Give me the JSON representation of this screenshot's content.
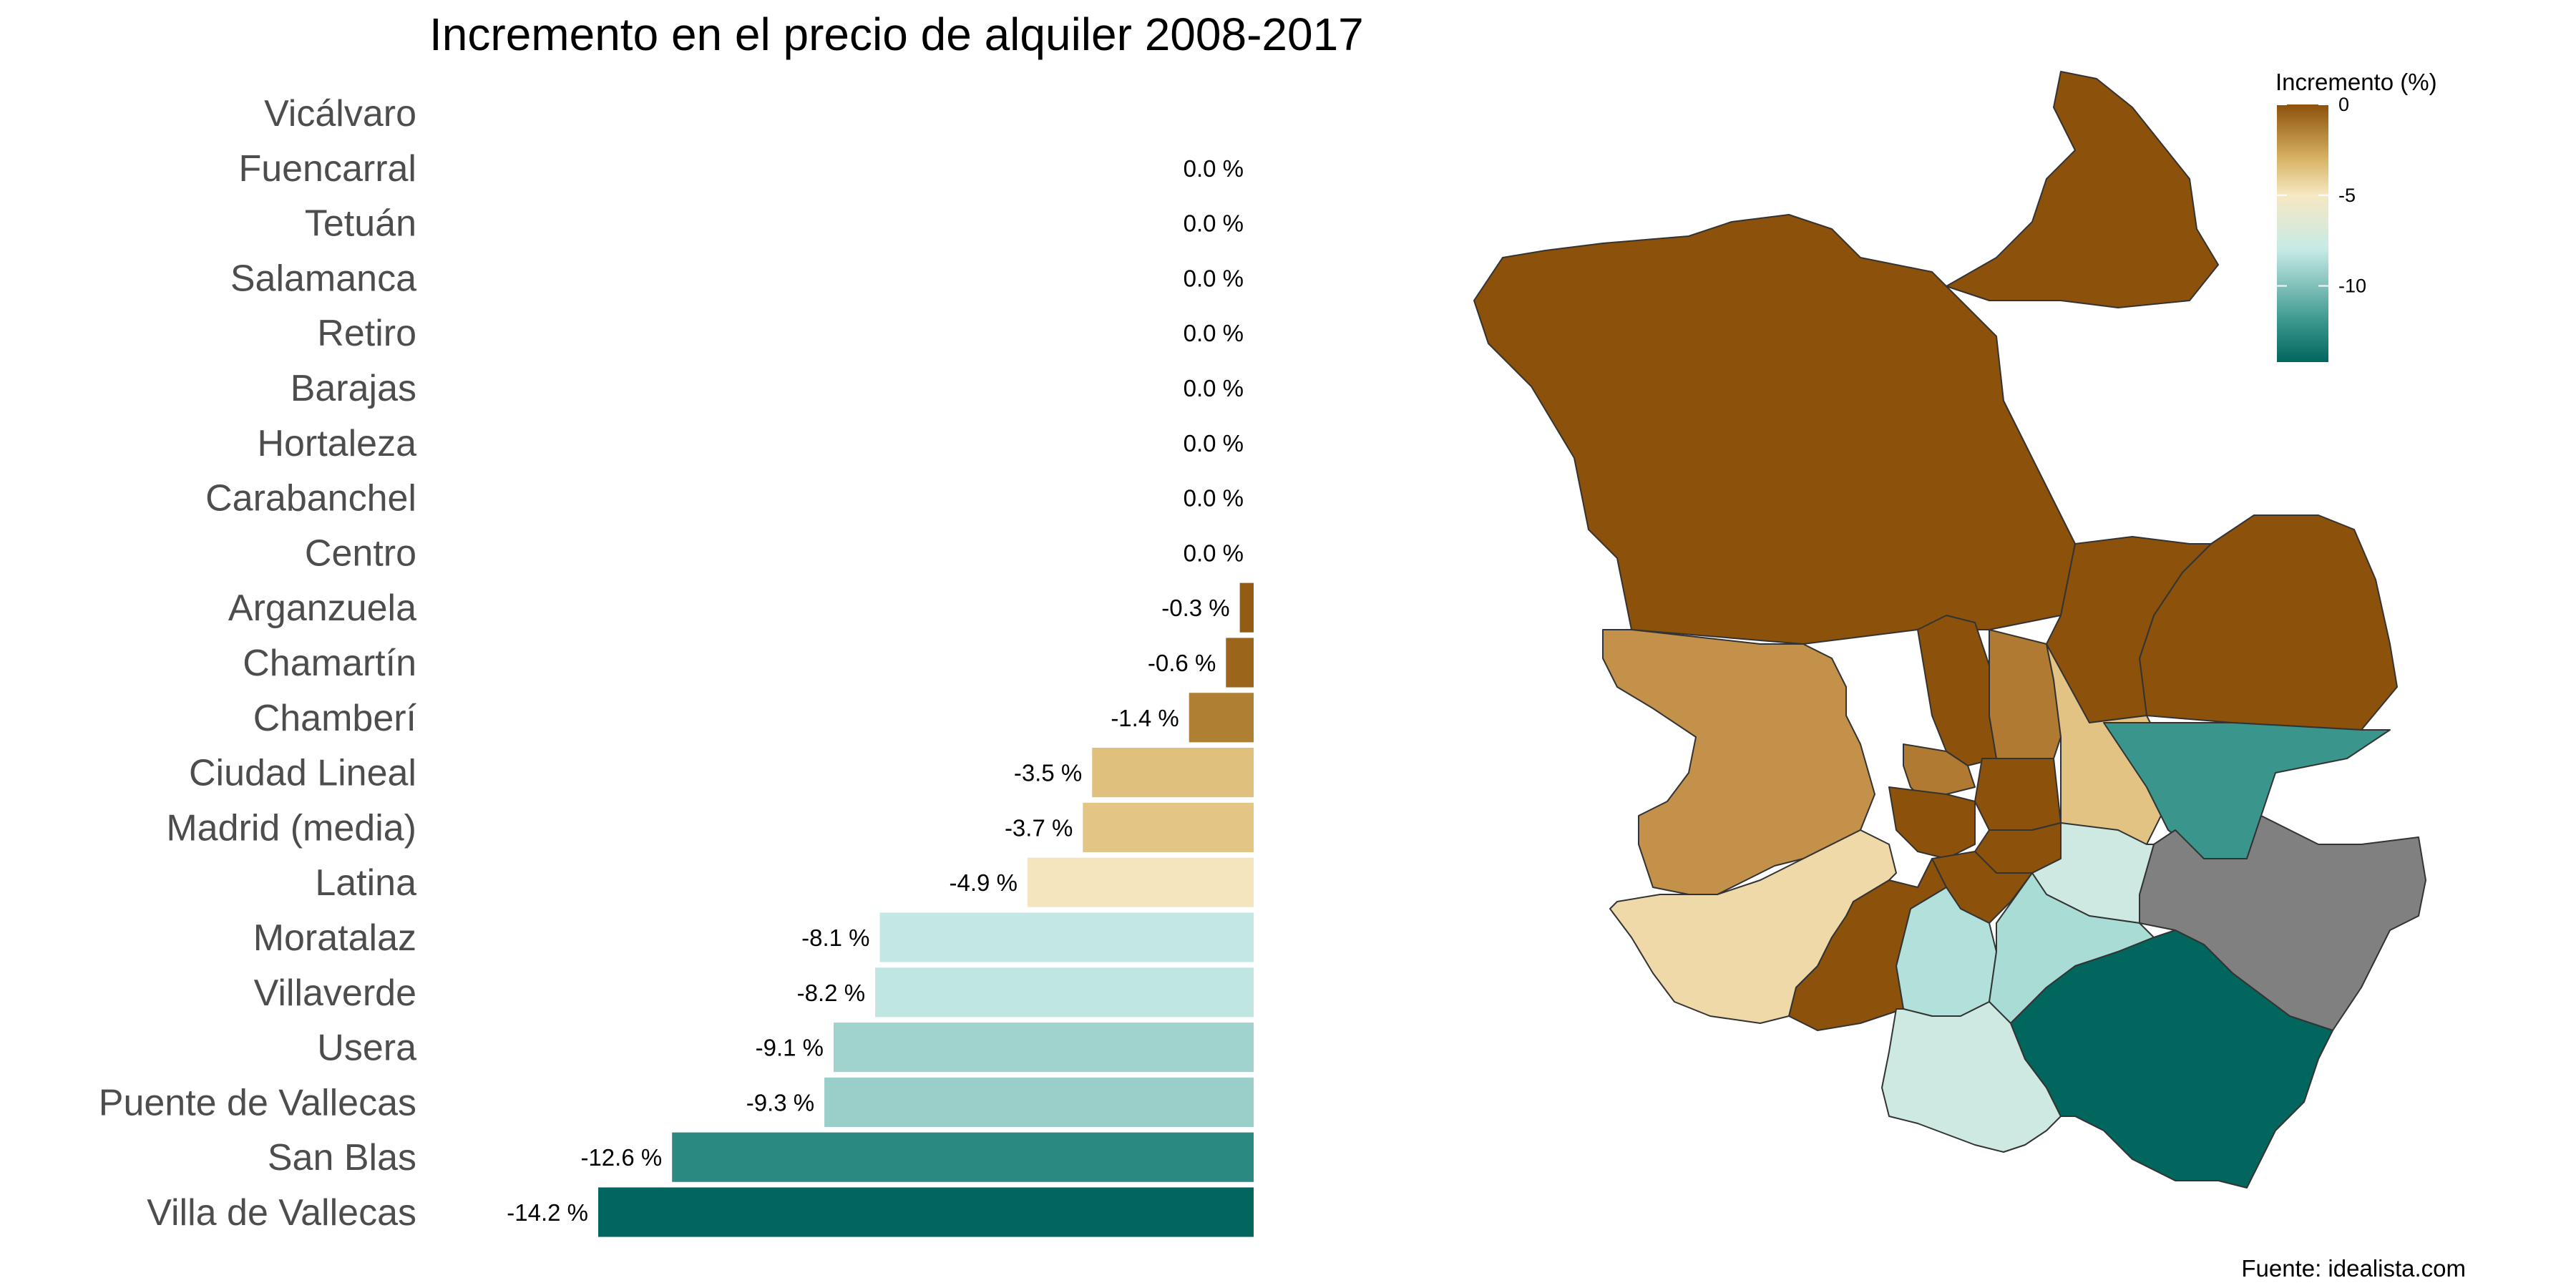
{
  "chart_data": {
    "type": "bar",
    "orientation": "horizontal",
    "title": "Incremento en el precio de alquiler 2008-2017",
    "caption": "Fuente: idealista.com",
    "value_suffix": " %",
    "categories": [
      "Vicálvaro",
      "Fuencarral",
      "Tetuán",
      "Salamanca",
      "Retiro",
      "Barajas",
      "Hortaleza",
      "Carabanchel",
      "Centro",
      "Arganzuela",
      "Chamartín",
      "Chamberí",
      "Ciudad Lineal",
      "Madrid (media)",
      "Latina",
      "Moratalaz",
      "Villaverde",
      "Usera",
      "Puente de Vallecas",
      "San Blas",
      "Villa de Vallecas"
    ],
    "values": [
      null,
      0.0,
      0.0,
      0.0,
      0.0,
      0.0,
      0.0,
      0.0,
      0.0,
      -0.3,
      -0.6,
      -1.4,
      -3.5,
      -3.7,
      -4.9,
      -8.1,
      -8.2,
      -9.1,
      -9.3,
      -12.6,
      -14.2
    ],
    "x_range": [
      -14.2,
      0
    ],
    "legend": {
      "title": "Incremento (%)",
      "position": "top-right",
      "ticks": [
        0,
        -5,
        -10
      ],
      "gradient_stops": [
        {
          "value": 0,
          "color": "#8c510a"
        },
        {
          "value": -3,
          "color": "#d8b365"
        },
        {
          "value": -5,
          "color": "#f6e8c3"
        },
        {
          "value": -8,
          "color": "#c7eae5"
        },
        {
          "value": -12,
          "color": "#3a968d"
        },
        {
          "value": -14.2,
          "color": "#01665e"
        }
      ]
    },
    "map": {
      "type": "choropleth",
      "region": "Madrid",
      "no_data_color": "#808080"
    }
  }
}
